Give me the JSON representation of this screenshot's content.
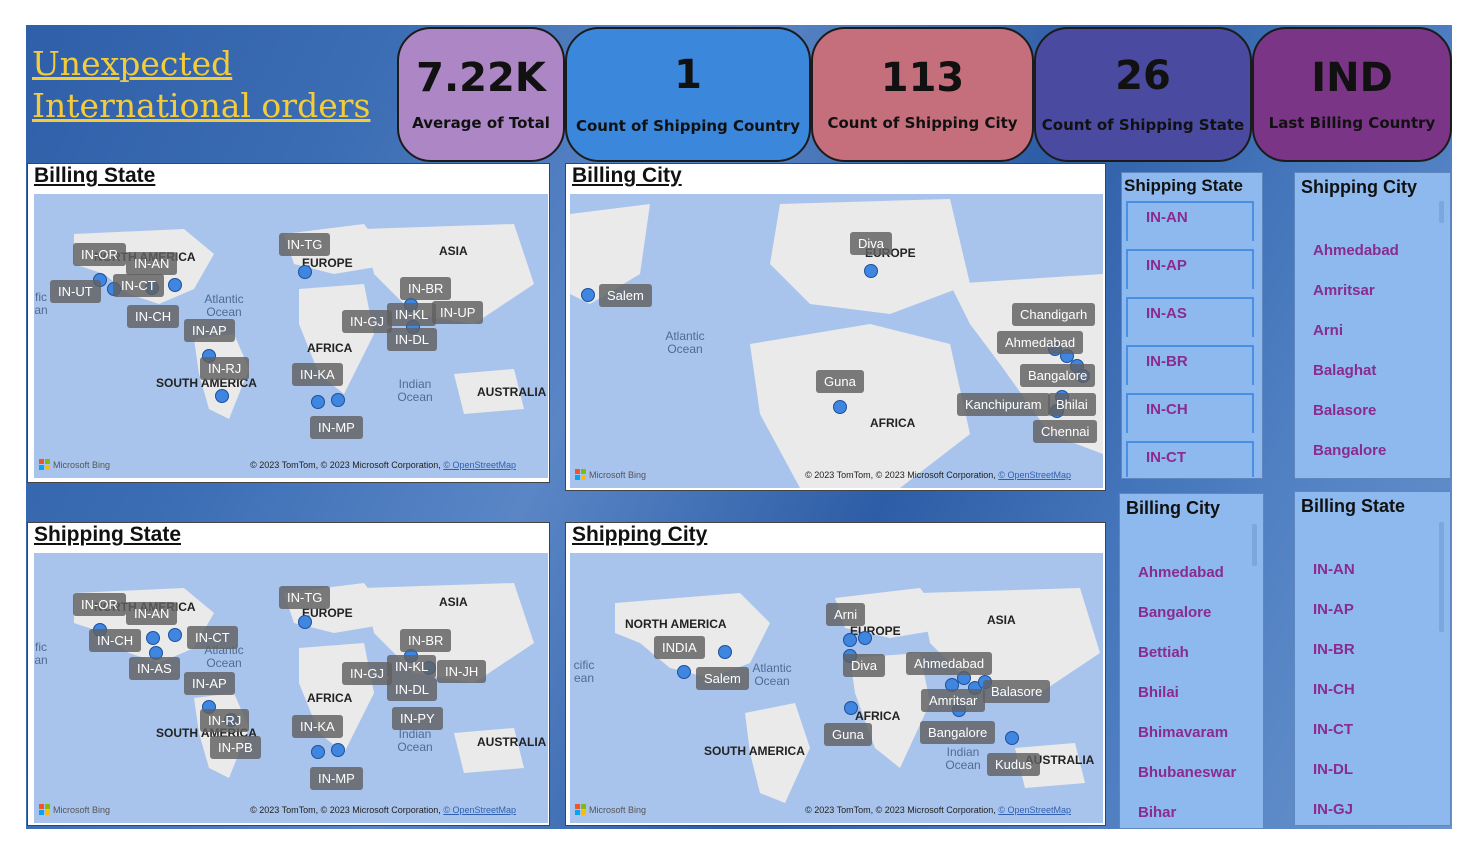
{
  "title": "Unexpected International orders",
  "colors": {
    "title": "#f4cc3a",
    "accent_text": "#8a2b8f",
    "dot": "#3f86e0"
  },
  "kpis": [
    {
      "value": "7.22K",
      "label": "Average of Total",
      "color": "#ad86c6"
    },
    {
      "value": "1",
      "label": "Count of Shipping Country",
      "color": "#3a87dc"
    },
    {
      "value": "113",
      "label": "Count of Shipping City",
      "color": "#c56f7d"
    },
    {
      "value": "26",
      "label": "Count of Shipping State",
      "color": "#4a4aa0"
    },
    {
      "value": "IND",
      "label": "Last Billing Country",
      "color": "#7a3586"
    }
  ],
  "maps": {
    "billing_state": {
      "title": "Billing State",
      "regions": [
        "NORTH AMERICA",
        "EUROPE",
        "ASIA",
        "AFRICA",
        "SOUTH AMERICA",
        "AUSTRALIA"
      ],
      "oceans": [
        "Atlantic Ocean",
        "Indian Ocean",
        "fic an"
      ],
      "tags": [
        "IN-OR",
        "IN-AN",
        "IN-UT",
        "IN-CT",
        "IN-CH",
        "IN-AP",
        "IN-RJ",
        "IN-TG",
        "IN-BR",
        "IN-GJ",
        "IN-KL",
        "IN-UP",
        "IN-DL",
        "IN-KA",
        "IN-MP"
      ]
    },
    "billing_city": {
      "title": "Billing City",
      "regions": [
        "EUROPE",
        "AFRICA"
      ],
      "oceans": [
        "Atlantic Ocean"
      ],
      "tags": [
        "Diva",
        "Salem",
        "Chandigarh",
        "Ahmedabad",
        "Bangalore",
        "Guna",
        "Kanchipuram",
        "Bhilai",
        "Chennai"
      ]
    },
    "shipping_state": {
      "title": "Shipping State",
      "regions": [
        "NORTH AMERICA",
        "EUROPE",
        "ASIA",
        "AFRICA",
        "SOUTH AMERICA",
        "AUSTRALIA"
      ],
      "oceans": [
        "Atlantic Ocean",
        "Indian Ocean",
        "fic an"
      ],
      "tags": [
        "IN-OR",
        "IN-AN",
        "IN-CH",
        "IN-CT",
        "IN-AS",
        "IN-AP",
        "IN-RJ",
        "IN-PB",
        "IN-TG",
        "IN-BR",
        "IN-GJ",
        "IN-KL",
        "IN-JH",
        "IN-DL",
        "IN-PY",
        "IN-KA",
        "IN-MP"
      ]
    },
    "shipping_city": {
      "title": "Shipping City",
      "regions": [
        "NORTH AMERICA",
        "EUROPE",
        "ASIA",
        "AFRICA",
        "SOUTH AMERICA",
        "AUSTRALIA"
      ],
      "oceans": [
        "Atlantic Ocean",
        "Indian Ocean",
        "cific ean"
      ],
      "tags": [
        "Arni",
        "INDIA",
        "Salem",
        "Diva",
        "Ahmedabad",
        "Amritsar",
        "Balasore",
        "Bangalore",
        "Guna",
        "Kudus"
      ]
    },
    "attribution": {
      "bing": "Microsoft Bing",
      "copyright": "© 2023 TomTom, © 2023 Microsoft Corporation,",
      "osm": "© OpenStreetMap"
    }
  },
  "slicers": {
    "shipping_state": {
      "title": "Shipping State",
      "items": [
        "IN-AN",
        "IN-AP",
        "IN-AS",
        "IN-BR",
        "IN-CH",
        "IN-CT"
      ]
    },
    "shipping_city": {
      "title": "Shipping City",
      "items": [
        "Ahmedabad",
        "Amritsar",
        "Arni",
        "Balaghat",
        "Balasore",
        "Bangalore"
      ]
    },
    "billing_city": {
      "title": "Billing City",
      "items": [
        "Ahmedabad",
        "Bangalore",
        "Bettiah",
        "Bhilai",
        "Bhimavaram",
        "Bhubaneswar",
        "Bihar"
      ]
    },
    "billing_state": {
      "title": "Billing State",
      "items": [
        "IN-AN",
        "IN-AP",
        "IN-BR",
        "IN-CH",
        "IN-CT",
        "IN-DL",
        "IN-GJ"
      ]
    }
  }
}
